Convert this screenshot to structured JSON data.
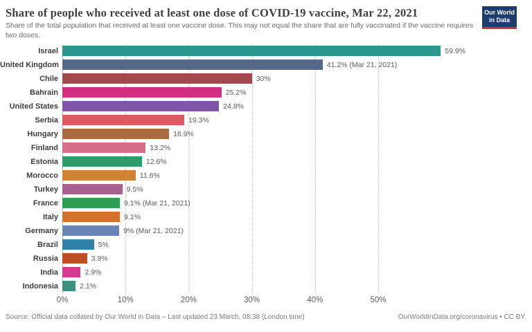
{
  "header": {
    "title": "Share of people who received at least one dose of COVID-19 vaccine, Mar 22, 2021",
    "subtitle": "Share of the total population that received at least one vaccine dose. This may not equal the share that are fully vaccinated if the vaccine requires two doses."
  },
  "logo": {
    "line1": "Our World",
    "line2": "in Data",
    "background_color": "#1d3d6e",
    "accent_color": "#d0342a"
  },
  "chart_data": {
    "type": "bar",
    "orientation": "horizontal",
    "title": "Share of people who received at least one dose of COVID-19 vaccine, Mar 22, 2021",
    "xlabel": "",
    "ylabel": "",
    "xlim": [
      0,
      60
    ],
    "grid": "dotted-vertical",
    "x_ticks": [
      {
        "value": 0,
        "label": "0%"
      },
      {
        "value": 10,
        "label": "10%"
      },
      {
        "value": 20,
        "label": "20%"
      },
      {
        "value": 30,
        "label": "30%"
      },
      {
        "value": 40,
        "label": "40%"
      },
      {
        "value": 50,
        "label": "50%"
      }
    ],
    "series": [
      {
        "country": "Israel",
        "value": 59.9,
        "label": "59.9%",
        "color": "#2a968c"
      },
      {
        "country": "United Kingdom",
        "value": 41.2,
        "label": "41.2% (Mar 21, 2021)",
        "color": "#566986"
      },
      {
        "country": "Chile",
        "value": 30.0,
        "label": "30%",
        "color": "#a2494e"
      },
      {
        "country": "Bahrain",
        "value": 25.2,
        "label": "25.2%",
        "color": "#d42e80"
      },
      {
        "country": "United States",
        "value": 24.8,
        "label": "24.8%",
        "color": "#7f56a7"
      },
      {
        "country": "Serbia",
        "value": 19.3,
        "label": "19.3%",
        "color": "#dd5a60"
      },
      {
        "country": "Hungary",
        "value": 16.9,
        "label": "16.9%",
        "color": "#aa6b41"
      },
      {
        "country": "Finland",
        "value": 13.2,
        "label": "13.2%",
        "color": "#d66f85"
      },
      {
        "country": "Estonia",
        "value": 12.6,
        "label": "12.6%",
        "color": "#2d9c69"
      },
      {
        "country": "Morocco",
        "value": 11.6,
        "label": "11.6%",
        "color": "#cf8434"
      },
      {
        "country": "Turkey",
        "value": 9.5,
        "label": "9.5%",
        "color": "#a7608f"
      },
      {
        "country": "France",
        "value": 9.1,
        "label": "9.1% (Mar 21, 2021)",
        "color": "#2f9e55"
      },
      {
        "country": "Italy",
        "value": 9.1,
        "label": "9.1%",
        "color": "#d4712e"
      },
      {
        "country": "Germany",
        "value": 9.0,
        "label": "9% (Mar 21, 2021)",
        "color": "#6c83b5"
      },
      {
        "country": "Brazil",
        "value": 5.0,
        "label": "5%",
        "color": "#3081a8"
      },
      {
        "country": "Russia",
        "value": 3.9,
        "label": "3.9%",
        "color": "#bf4e22"
      },
      {
        "country": "India",
        "value": 2.9,
        "label": "2.9%",
        "color": "#d43a90"
      },
      {
        "country": "Indonesia",
        "value": 2.1,
        "label": "2.1%",
        "color": "#3d8f80"
      }
    ]
  },
  "footer": {
    "source": "Source: Official data collated by Our World in Data – Last updated 23 March, 08:38 (London time)",
    "link": "OurWorldInData.org/coronavirus • CC BY"
  }
}
